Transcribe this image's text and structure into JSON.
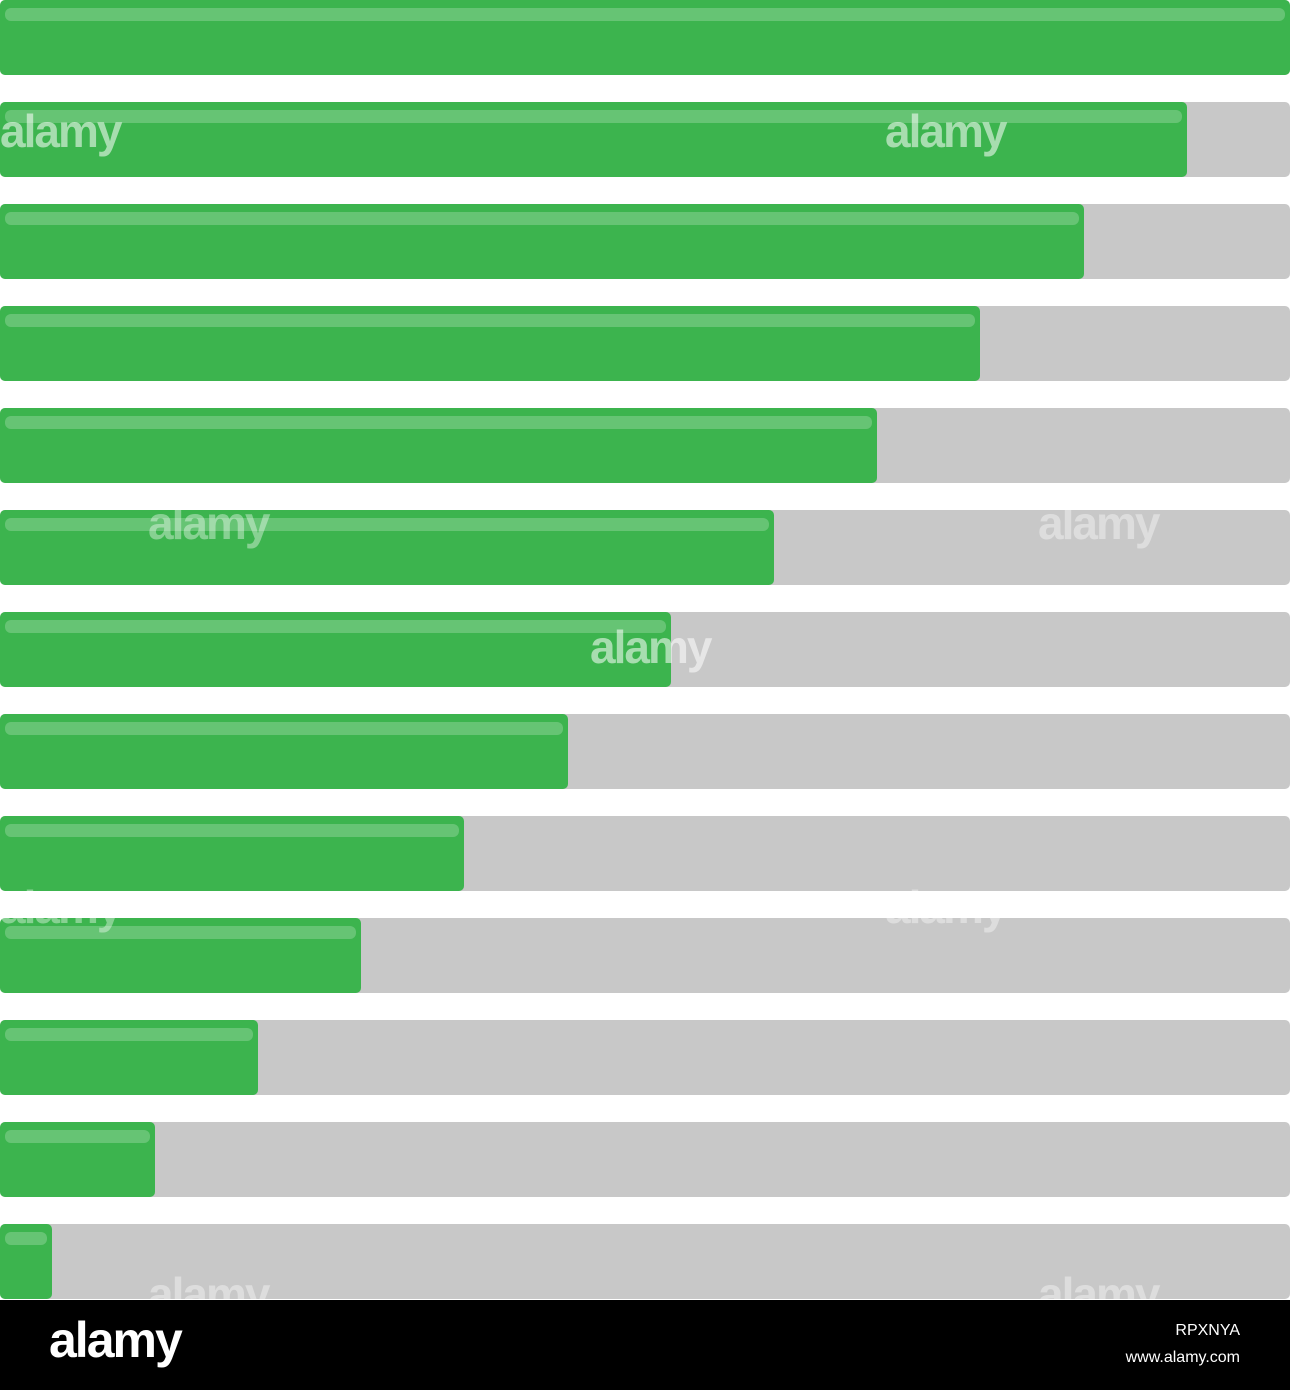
{
  "progress_bars": [
    {
      "label": "progress-100",
      "progress": 100
    },
    {
      "label": "progress-92",
      "progress": 92
    },
    {
      "label": "progress-84",
      "progress": 84
    },
    {
      "label": "progress-76",
      "progress": 76
    },
    {
      "label": "progress-68",
      "progress": 68
    },
    {
      "label": "progress-60",
      "progress": 60
    },
    {
      "label": "progress-52",
      "progress": 52
    },
    {
      "label": "progress-44",
      "progress": 44
    },
    {
      "label": "progress-36",
      "progress": 36
    },
    {
      "label": "progress-28",
      "progress": 28
    },
    {
      "label": "progress-20",
      "progress": 20
    },
    {
      "label": "progress-12",
      "progress": 12
    },
    {
      "label": "progress-4",
      "progress": 4
    }
  ],
  "colors": {
    "fill": "#3cb44e",
    "track": "#c8c8c8",
    "background": "#ffffff",
    "footer": "#000000"
  },
  "watermark": {
    "text": "alamy"
  },
  "footer": {
    "logo": "alamy",
    "image_id": "RPXNYA",
    "url": "www.alamy.com"
  }
}
